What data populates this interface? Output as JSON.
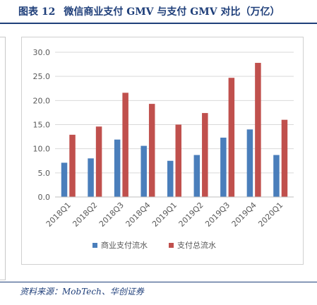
{
  "figure": {
    "number": "图表 12",
    "title": "微信商业支付 GMV 与支付 GMV 对比（万亿）"
  },
  "source": "资料来源：MobTech、华创证券",
  "colors": {
    "title": "#1f3f7a",
    "series_blue": "#4a7ebb",
    "series_red": "#c0504d",
    "grid": "#d9d9d9",
    "axis_text": "#595959"
  },
  "chart_data": {
    "type": "bar",
    "categories": [
      "2018Q1",
      "2018Q2",
      "2018Q3",
      "2018Q4",
      "2019Q1",
      "2019Q2",
      "2019Q3",
      "2019Q4",
      "2020Q1"
    ],
    "series": [
      {
        "name": "商业支付流水",
        "color": "#4a7ebb",
        "values": [
          7.1,
          8.0,
          11.9,
          10.6,
          7.5,
          8.7,
          12.3,
          14.0,
          8.7
        ]
      },
      {
        "name": "支付总流水",
        "color": "#c0504d",
        "values": [
          12.9,
          14.6,
          21.6,
          19.3,
          15.0,
          17.4,
          24.7,
          27.8,
          16.0
        ]
      }
    ],
    "yticks": [
      "0.0",
      "5.0",
      "10.0",
      "15.0",
      "20.0",
      "25.0",
      "30.0"
    ],
    "ylim": [
      0,
      30
    ],
    "grid": true,
    "legend_position": "bottom"
  }
}
